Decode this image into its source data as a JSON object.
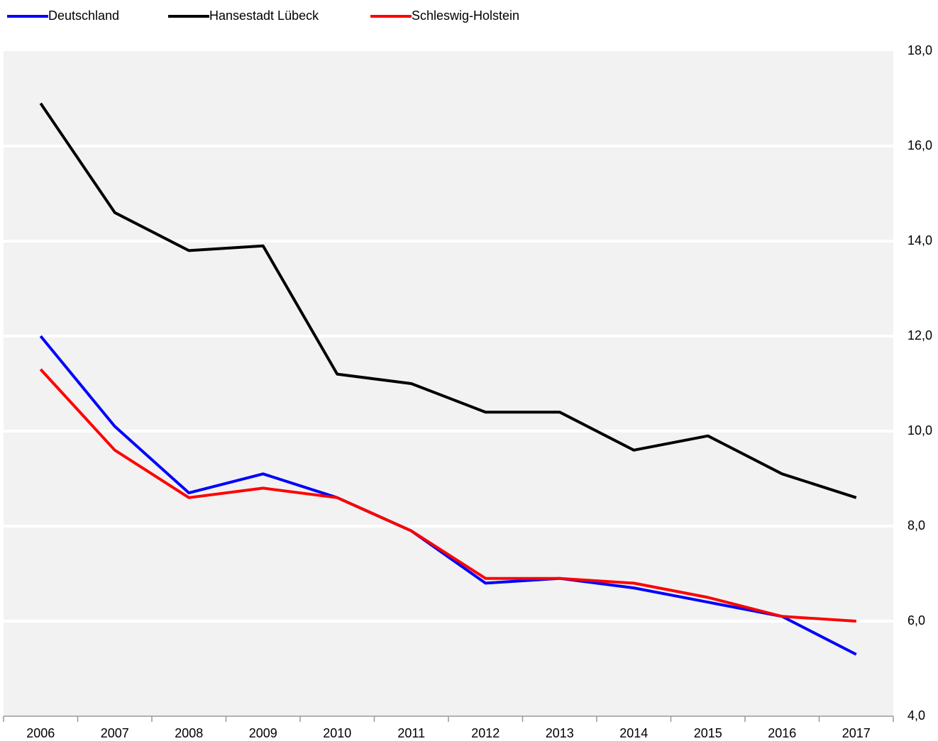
{
  "chart_data": {
    "type": "line",
    "categories": [
      "2006",
      "2007",
      "2008",
      "2009",
      "2010",
      "2011",
      "2012",
      "2013",
      "2014",
      "2015",
      "2016",
      "2017"
    ],
    "series": [
      {
        "name": "Deutschland",
        "color": "#0000ff",
        "values": [
          12.0,
          10.1,
          8.7,
          9.1,
          8.6,
          7.9,
          6.8,
          6.9,
          6.7,
          6.4,
          6.1,
          5.3
        ]
      },
      {
        "name": "Hansestadt Lübeck",
        "color": "#000000",
        "values": [
          16.9,
          14.6,
          13.8,
          13.9,
          11.2,
          11.0,
          10.4,
          10.4,
          9.6,
          9.9,
          9.1,
          8.6
        ]
      },
      {
        "name": "Schleswig-Holstein",
        "color": "#ff0000",
        "values": [
          11.3,
          9.6,
          8.6,
          8.8,
          8.6,
          7.9,
          6.9,
          6.9,
          6.8,
          6.5,
          6.1,
          6.0
        ]
      }
    ],
    "ylim": [
      4,
      18
    ],
    "yticks": [
      {
        "value": 4,
        "label": "4,0"
      },
      {
        "value": 6,
        "label": "6,0"
      },
      {
        "value": 8,
        "label": "8,0"
      },
      {
        "value": 10,
        "label": "10,0"
      },
      {
        "value": 12,
        "label": "12,0"
      },
      {
        "value": 14,
        "label": "14,0"
      },
      {
        "value": 16,
        "label": "16,0"
      },
      {
        "value": 18,
        "label": "18,0"
      }
    ],
    "grid": true,
    "yaxis_side": "right",
    "legend": "top-left"
  }
}
